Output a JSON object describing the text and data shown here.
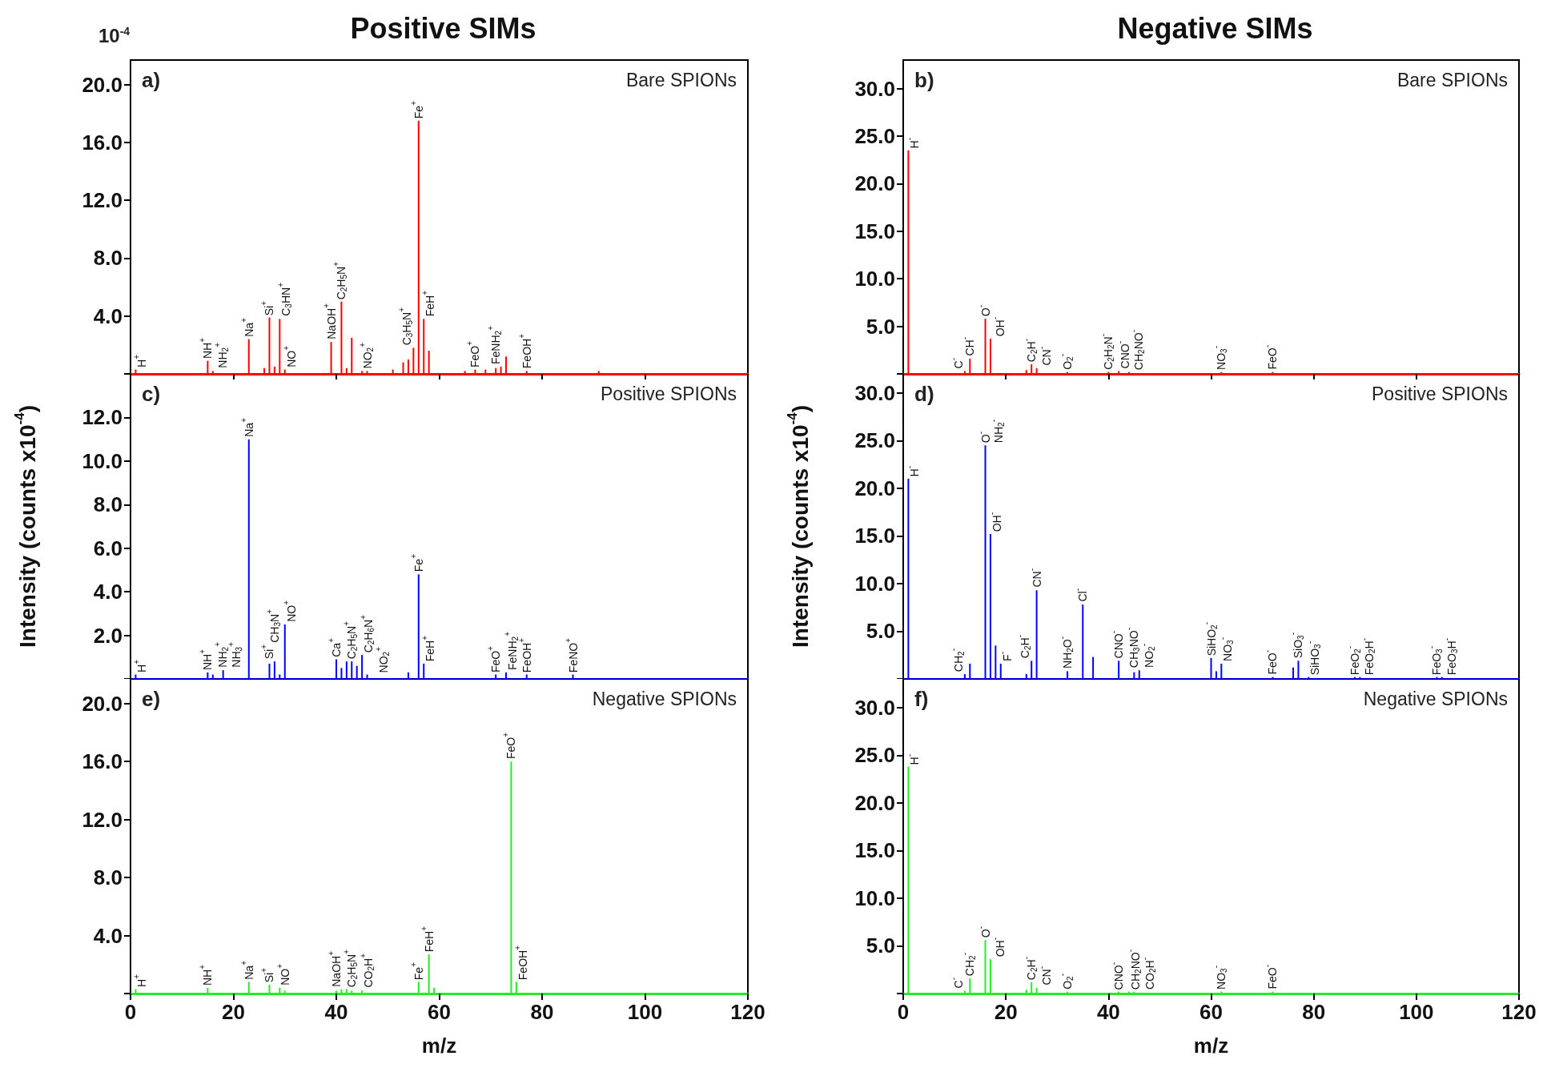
{
  "chart_data": [
    {
      "type": "bar",
      "title": "Positive SIMs",
      "color": "#ff0000",
      "xlim": [
        0,
        120
      ],
      "xticks": [
        0,
        20,
        40,
        60,
        80,
        100,
        120
      ],
      "ylim": [
        0,
        21.7
      ],
      "yticks": [
        {
          "value": 0,
          "label": null
        },
        {
          "value": 4,
          "label": "4.0"
        },
        {
          "value": 8,
          "label": "8.0"
        },
        {
          "value": 12,
          "label": "12.0"
        },
        {
          "value": 16,
          "label": "16.0"
        },
        {
          "value": 20,
          "label": "20.0"
        }
      ],
      "tick_labels": "y",
      "x": [
        1,
        15,
        16,
        23,
        26,
        27,
        28,
        29,
        30,
        39,
        41,
        42,
        43,
        45,
        46,
        51,
        53,
        54,
        55,
        56,
        57,
        58,
        65,
        67,
        69,
        71,
        72,
        73,
        77,
        91
      ],
      "values": [
        0.3,
        0.9,
        0.2,
        2.4,
        0.4,
        3.9,
        0.5,
        3.8,
        0.3,
        2.2,
        5.0,
        0.4,
        2.5,
        0.2,
        0.2,
        0.3,
        0.8,
        1.0,
        1.8,
        17.5,
        3.8,
        1.6,
        0.2,
        0.3,
        0.3,
        0.4,
        0.5,
        1.2,
        0.2,
        0.2
      ],
      "annotations": [
        "a)",
        "Bare SPIONs",
        "10$^{-4}$",
        {
          "text": "H$^{+}$",
          "x": 1,
          "y": 0.3
        },
        {
          "text": "NH$^{+}$",
          "x": 15,
          "y": 0.9
        },
        {
          "text": "NH$_{2}$$^{+}$",
          "x": 16,
          "y": 0.2
        },
        {
          "text": "Na$^{+}$",
          "x": 23,
          "y": 2.4
        },
        {
          "text": "Si$^{+}$",
          "x": 27,
          "y": 3.9
        },
        {
          "text": "C$_{3}$HN$^{+}$",
          "x": 29,
          "y": 3.8
        },
        {
          "text": "NO$^{+}$",
          "x": 30,
          "y": 0.3
        },
        {
          "text": "NaOH$^{+}$",
          "x": 39,
          "y": 2.2
        },
        {
          "text": "C$_{2}$H$_{5}$N$^{+}$",
          "x": 41,
          "y": 5.0
        },
        {
          "text": "NO$_{2}$$^{+}$",
          "x": 46,
          "y": 0.2
        },
        {
          "text": "C$_{3}$H$_{5}$N$^{+}$",
          "x": 55,
          "y": 1.8
        },
        {
          "text": "Fe$^{+}$",
          "x": 56,
          "y": 17.5
        },
        {
          "text": "FeH$^{+}$",
          "x": 57,
          "y": 3.8
        },
        {
          "text": "FeO$^{+}$",
          "x": 67,
          "y": 0.3
        },
        {
          "text": "FeNH$_{2}$$^{+}$",
          "x": 71,
          "y": 0.4
        },
        {
          "text": "FeOH$^{+}$",
          "x": 77,
          "y": 0.2
        }
      ]
    },
    {
      "type": "bar",
      "title": "Negative SIMs",
      "color": "#ff0000",
      "xlim": [
        0,
        120
      ],
      "xticks": [
        0,
        20,
        40,
        60,
        80,
        100,
        120
      ],
      "ylim": [
        0,
        33
      ],
      "yticks": [
        {
          "value": 0,
          "label": null
        },
        {
          "value": 5,
          "label": "5.0"
        },
        {
          "value": 10,
          "label": "10.0"
        },
        {
          "value": 15,
          "label": "15.0"
        },
        {
          "value": 20,
          "label": "20.0"
        },
        {
          "value": 25,
          "label": "25.0"
        },
        {
          "value": 30,
          "label": "30.0"
        }
      ],
      "tick_labels": "y",
      "x": [
        1,
        12,
        13,
        16,
        17,
        24,
        25,
        26,
        32,
        40,
        42,
        44,
        62,
        72
      ],
      "values": [
        23.5,
        0.3,
        1.6,
        5.8,
        3.7,
        0.4,
        1.0,
        0.6,
        0.2,
        0.2,
        0.3,
        0.2,
        0.2,
        0.2
      ],
      "annotations": [
        "b)",
        "Bare SPIONs",
        {
          "text": "H$^{-}$",
          "x": 1,
          "y": 23.5
        },
        {
          "text": "C$^{-}$",
          "x": 12,
          "y": 0.3
        },
        {
          "text": "CH$^{-}$",
          "x": 13,
          "y": 1.6
        },
        {
          "text": "O$^{-}$",
          "x": 16,
          "y": 5.8
        },
        {
          "text": "OH$^{-}$",
          "x": 17,
          "y": 3.7
        },
        {
          "text": "C$_{2}$H$^{-}$",
          "x": 25,
          "y": 1.0
        },
        {
          "text": "CN$^{-}$",
          "x": 26,
          "y": 0.6
        },
        {
          "text": "O$_{2}$$^{-}$",
          "x": 32,
          "y": 0.2
        },
        {
          "text": "C$_{2}$H$_{2}$N$^{-}$",
          "x": 40,
          "y": 0.2
        },
        {
          "text": "CNO$^{-}$",
          "x": 42,
          "y": 0.3
        },
        {
          "text": "CH$_{2}$NO$^{-}$",
          "x": 44,
          "y": 0.2
        },
        {
          "text": "NO$_{3}$$^{-}$",
          "x": 62,
          "y": 0.2
        },
        {
          "text": "FeO$^{-}$",
          "x": 72,
          "y": 0.2
        }
      ]
    },
    {
      "type": "bar",
      "color": "#0000ff",
      "ylabel": "Intensity (counts x10$^{-4}$)",
      "xlim": [
        0,
        120
      ],
      "xticks": [
        0,
        20,
        40,
        60,
        80,
        100,
        120
      ],
      "ylim": [
        0,
        14
      ],
      "yticks": [
        {
          "value": 0,
          "label": null
        },
        {
          "value": 2,
          "label": "2.0"
        },
        {
          "value": 4,
          "label": "4.0"
        },
        {
          "value": 6,
          "label": "6.0"
        },
        {
          "value": 8,
          "label": "8.0"
        },
        {
          "value": 10,
          "label": "10.0"
        },
        {
          "value": 12,
          "label": "12.0"
        }
      ],
      "tick_labels": "y",
      "x": [
        1,
        15,
        16,
        18,
        23,
        27,
        28,
        29,
        30,
        40,
        41,
        42,
        43,
        44,
        45,
        46,
        54,
        56,
        57,
        71,
        73,
        77,
        86
      ],
      "values": [
        0.2,
        0.3,
        0.2,
        0.4,
        11.0,
        0.7,
        0.8,
        0.2,
        2.5,
        0.9,
        0.5,
        0.8,
        0.8,
        0.6,
        1.1,
        0.2,
        0.3,
        4.8,
        0.7,
        0.2,
        0.3,
        0.2,
        0.2
      ],
      "annotations": [
        "c)",
        "Positive SPIONs",
        {
          "text": "H$^{+}$",
          "x": 1,
          "y": 0.2
        },
        {
          "text": "NH$^{+}$",
          "x": 15,
          "y": 0.3
        },
        {
          "text": "NH$_{2}$$^{+}$",
          "x": 16,
          "y": 0.2
        },
        {
          "text": "NH$_{3}$$^{+}$",
          "x": 18,
          "y": 0.4
        },
        {
          "text": "Na$^{+}$",
          "x": 23,
          "y": 11.0
        },
        {
          "text": "Si$^{+}$",
          "x": 27,
          "y": 0.7
        },
        {
          "text": "CH$_{3}$N$^{+}$",
          "x": 28,
          "y": 0.8
        },
        {
          "text": "NO$^{+}$",
          "x": 30,
          "y": 2.5
        },
        {
          "text": "Ca$^{+}$",
          "x": 40,
          "y": 0.9
        },
        {
          "text": "C$_{2}$H$_{5}$N$^{+}$",
          "x": 43,
          "y": 0.8
        },
        {
          "text": "C$_{2}$H$_{6}$N$^{+}$",
          "x": 45,
          "y": 1.1
        },
        {
          "text": "NO$_{2}$$^{+}$",
          "x": 46,
          "y": 0.2
        },
        {
          "text": "Fe$^{+}$",
          "x": 56,
          "y": 4.8
        },
        {
          "text": "FeH$^{+}$",
          "x": 57,
          "y": 0.7
        },
        {
          "text": "FeO$^{+}$",
          "x": 71,
          "y": 0.2
        },
        {
          "text": "FeNH$_{2}$$^{+}$",
          "x": 73,
          "y": 0.3
        },
        {
          "text": "FeOH$^{+}$",
          "x": 77,
          "y": 0.2
        },
        {
          "text": "FeNO$^{+}$",
          "x": 86,
          "y": 0.2
        }
      ]
    },
    {
      "type": "bar",
      "color": "#0000ff",
      "ylabel": "Intensity (counts x10$^{-4}$)",
      "xlim": [
        0,
        120
      ],
      "xticks": [
        0,
        20,
        40,
        60,
        80,
        100,
        120
      ],
      "ylim": [
        0,
        32
      ],
      "yticks": [
        {
          "value": 0,
          "label": null
        },
        {
          "value": 5,
          "label": "5.0"
        },
        {
          "value": 10,
          "label": "10.0"
        },
        {
          "value": 15,
          "label": "15.0"
        },
        {
          "value": 20,
          "label": "20.0"
        },
        {
          "value": 25,
          "label": "25.0"
        },
        {
          "value": 30,
          "label": "30.0"
        }
      ],
      "tick_labels": "y",
      "x": [
        1,
        12,
        13,
        16,
        17,
        18,
        19,
        24,
        25,
        26,
        32,
        35,
        37,
        42,
        45,
        46,
        60,
        61,
        62,
        72,
        76,
        77,
        79,
        88,
        89,
        104,
        105
      ],
      "values": [
        21.0,
        0.5,
        1.6,
        24.5,
        15.2,
        3.5,
        1.6,
        0.5,
        1.9,
        9.3,
        0.8,
        7.8,
        2.3,
        1.9,
        0.7,
        0.9,
        2.2,
        0.8,
        1.6,
        0.2,
        1.2,
        1.9,
        0.2,
        0.2,
        0.2,
        0.2,
        0.2
      ],
      "annotations": [
        "d)",
        "Positive SPIONs",
        {
          "text": "H$^{-}$",
          "x": 1,
          "y": 21.0
        },
        {
          "text": "CH$_{2}$$^{-}$",
          "x": 12,
          "y": 0.5
        },
        {
          "text": "O$^{-}$",
          "x": 16,
          "y": 24.5
        },
        {
          "text": "NH$_{2}$$^{-}$",
          "x": 16,
          "y": 24.5
        },
        {
          "text": "OH$^{-}$",
          "x": 17,
          "y": 15.2
        },
        {
          "text": "F$^{-}$",
          "x": 19,
          "y": 1.6
        },
        {
          "text": "C$_{2}$H$^{-}$",
          "x": 25,
          "y": 1.9
        },
        {
          "text": "CN$^{-}$",
          "x": 26,
          "y": 9.3
        },
        {
          "text": "NH$_{2}$O$^{-}$",
          "x": 32,
          "y": 0.8
        },
        {
          "text": "Cl$^{-}$",
          "x": 35,
          "y": 7.8
        },
        {
          "text": "CNO$^{-}$",
          "x": 42,
          "y": 1.9
        },
        {
          "text": "CH$_{3}$NO$^{-}$",
          "x": 45,
          "y": 0.7
        },
        {
          "text": "NO$_{2}$$^{-}$",
          "x": 46,
          "y": 0.9
        },
        {
          "text": "SiHO$_{2}$$^{-}$",
          "x": 60,
          "y": 2.2
        },
        {
          "text": "NO$_{3}$$^{-}$",
          "x": 62,
          "y": 1.6
        },
        {
          "text": "FeO$^{-}$",
          "x": 72,
          "y": 0.2
        },
        {
          "text": "SiO$_{3}$$^{-}$",
          "x": 77,
          "y": 1.9
        },
        {
          "text": "SiHO$_{3}$$^{-}$",
          "x": 79,
          "y": 0.2
        },
        {
          "text": "FeO$_{2}$$^{-}$",
          "x": 88,
          "y": 0.2
        },
        {
          "text": "FeO$_{2}$H$^{-}$",
          "x": 89,
          "y": 0.2
        },
        {
          "text": "FeO$_{3}$$^{-}$",
          "x": 104,
          "y": 0.2
        },
        {
          "text": "FeO$_{3}$H$^{-}$",
          "x": 105,
          "y": 0.2
        }
      ]
    },
    {
      "type": "bar",
      "color": "#22ee22",
      "xlabel": "m/z",
      "xlim": [
        0,
        120
      ],
      "xticks": [
        0,
        20,
        40,
        60,
        80,
        100,
        120
      ],
      "ylim": [
        0,
        21.7
      ],
      "yticks": [
        {
          "value": 0,
          "label": null
        },
        {
          "value": 4,
          "label": "4.0"
        },
        {
          "value": 8,
          "label": "8.0"
        },
        {
          "value": 12,
          "label": "12.0"
        },
        {
          "value": 16,
          "label": "16.0"
        },
        {
          "value": 20,
          "label": "20.0"
        }
      ],
      "x": [
        1,
        15,
        23,
        27,
        29,
        30,
        40,
        41,
        42,
        43,
        45,
        56,
        58,
        59,
        74,
        75
      ],
      "values": [
        0.3,
        0.4,
        0.8,
        0.6,
        0.4,
        0.2,
        0.2,
        0.3,
        0.3,
        0.2,
        0.2,
        0.8,
        2.7,
        0.4,
        16.0,
        0.8
      ],
      "annotations": [
        "e)",
        "Negative SPIONs",
        {
          "text": "H$^{+}$",
          "x": 1,
          "y": 0.3
        },
        {
          "text": "NH$^{+}$",
          "x": 15,
          "y": 0.4
        },
        {
          "text": "Na$^{+}$",
          "x": 23,
          "y": 0.8
        },
        {
          "text": "Si$^{+}$",
          "x": 27,
          "y": 0.6
        },
        {
          "text": "NO$^{+}$",
          "x": 30,
          "y": 0.2
        },
        {
          "text": "NaOH$^{+}$",
          "x": 40,
          "y": 0.2
        },
        {
          "text": "C$_{2}$H$_{5}$N$^{+}$",
          "x": 43,
          "y": 0.2
        },
        {
          "text": "CO$_{2}$H$^{+}$",
          "x": 45,
          "y": 0.2
        },
        {
          "text": "Fe$^{+}$",
          "x": 56,
          "y": 0.8
        },
        {
          "text": "FeH$^{+}$",
          "x": 58,
          "y": 2.7
        },
        {
          "text": "FeO$^{+}$",
          "x": 74,
          "y": 16.0
        },
        {
          "text": "FeOH$^{+}$",
          "x": 75,
          "y": 0.8
        }
      ]
    },
    {
      "type": "bar",
      "color": "#22ee22",
      "xlabel": "m/z",
      "xlim": [
        0,
        120
      ],
      "xticks": [
        0,
        20,
        40,
        60,
        80,
        100,
        120
      ],
      "ylim": [
        0,
        33
      ],
      "yticks": [
        {
          "value": 0,
          "label": null
        },
        {
          "value": 5,
          "label": "5.0"
        },
        {
          "value": 10,
          "label": "10.0"
        },
        {
          "value": 15,
          "label": "15.0"
        },
        {
          "value": 20,
          "label": "20.0"
        },
        {
          "value": 25,
          "label": "25.0"
        },
        {
          "value": 30,
          "label": "30.0"
        }
      ],
      "x": [
        1,
        12,
        13,
        16,
        17,
        24,
        25,
        26,
        32,
        42,
        44,
        45,
        62,
        72
      ],
      "values": [
        23.8,
        0.3,
        1.6,
        5.6,
        3.6,
        0.4,
        1.2,
        0.6,
        0.2,
        0.2,
        0.2,
        0.2,
        0.2,
        0.2
      ],
      "annotations": [
        "f)",
        "Negative SPIONs",
        {
          "text": "H$^{-}$",
          "x": 1,
          "y": 23.8
        },
        {
          "text": "C$^{-}$",
          "x": 12,
          "y": 0.3
        },
        {
          "text": "CH$_{2}$$^{-}$",
          "x": 13,
          "y": 1.6
        },
        {
          "text": "O$^{-}$",
          "x": 16,
          "y": 5.6
        },
        {
          "text": "OH$^{-}$",
          "x": 17,
          "y": 3.6
        },
        {
          "text": "C$_{2}$H$^{-}$",
          "x": 25,
          "y": 1.2
        },
        {
          "text": "CN$^{-}$",
          "x": 26,
          "y": 0.6
        },
        {
          "text": "O$_{2}$$^{-}$",
          "x": 32,
          "y": 0.2
        },
        {
          "text": "CNO$^{-}$",
          "x": 42,
          "y": 0.2
        },
        {
          "text": "CH$_{2}$NO$^{-}$",
          "x": 44,
          "y": 0.2
        },
        {
          "text": "CO$_{2}$H$^{-}$",
          "x": 45,
          "y": 0.2
        },
        {
          "text": "NO$_{3}$$^{-}$",
          "x": 62,
          "y": 0.2
        },
        {
          "text": "FeO$^{-}$",
          "x": 72,
          "y": 0.2
        }
      ]
    }
  ]
}
